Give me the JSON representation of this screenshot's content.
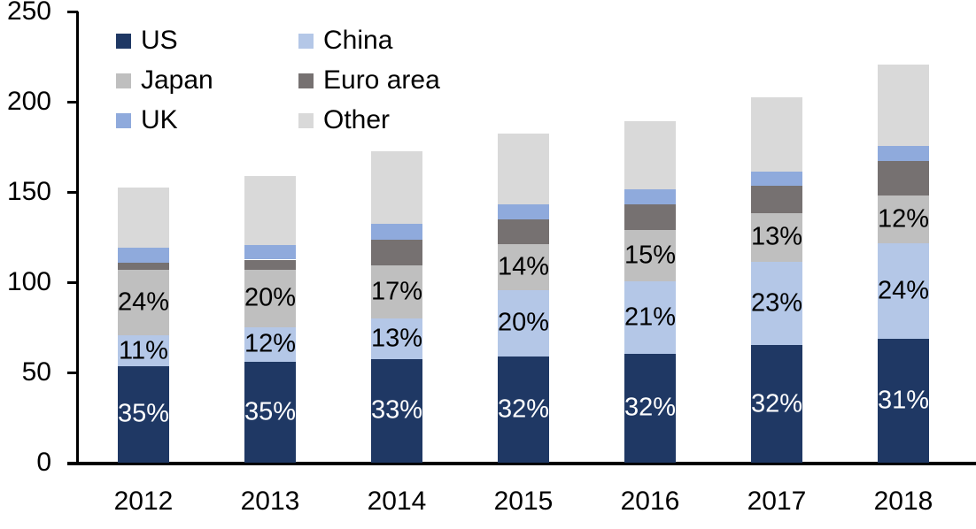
{
  "chart_data": {
    "type": "bar",
    "stacked": true,
    "title": "",
    "xlabel": "",
    "ylabel": "",
    "categories": [
      "2012",
      "2013",
      "2014",
      "2015",
      "2016",
      "2017",
      "2018"
    ],
    "series": [
      {
        "name": "US",
        "color": "#1F3864",
        "values": [
          53.5,
          56,
          57.5,
          59,
          60.5,
          65,
          68.5
        ],
        "labels": [
          "35%",
          "35%",
          "33%",
          "32%",
          "32%",
          "32%",
          "31%"
        ],
        "label_color": "#FFFFFF"
      },
      {
        "name": "China",
        "color": "#B4C7E7",
        "values": [
          17,
          19,
          22.5,
          36.5,
          40,
          46.5,
          53
        ],
        "labels": [
          "11%",
          "12%",
          "13%",
          "20%",
          "21%",
          "23%",
          "24%"
        ],
        "label_color": "#000000"
      },
      {
        "name": "Japan",
        "color": "#BFBFBF",
        "values": [
          36.5,
          32,
          29.5,
          25.5,
          28.5,
          26.5,
          26.5
        ],
        "labels": [
          "24%",
          "20%",
          "17%",
          "14%",
          "15%",
          "13%",
          "12%"
        ],
        "label_color": "#000000"
      },
      {
        "name": "Euro area",
        "color": "#767171",
        "values": [
          4,
          5.5,
          14,
          14,
          14,
          15.5,
          19
        ],
        "labels": null
      },
      {
        "name": "UK",
        "color": "#8FAADC",
        "values": [
          8,
          8,
          9,
          8,
          8.5,
          8,
          8.5
        ],
        "labels": null
      },
      {
        "name": "Other",
        "color": "#D9D9D9",
        "values": [
          33.5,
          38.5,
          40,
          39.5,
          37.5,
          41,
          45
        ],
        "labels": null
      }
    ],
    "ylim": [
      0,
      250
    ],
    "yticks": [
      0,
      50,
      100,
      150,
      200,
      250
    ],
    "grid": false,
    "legend_position": "top-left",
    "legend_columns": 2,
    "axis_color": "#000000",
    "background_color": "#FFFFFF",
    "text_color": "#000000"
  }
}
